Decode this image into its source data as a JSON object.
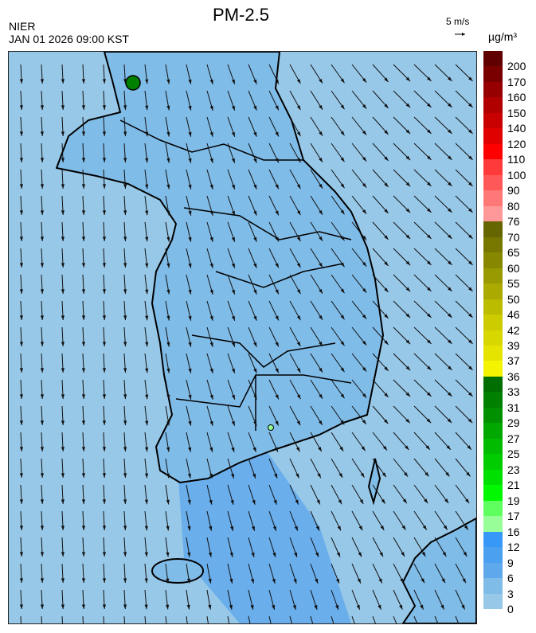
{
  "header": {
    "title": "PM-2.5",
    "source": "NIER",
    "datetime": "JAN 01 2026 09:00 KST"
  },
  "wind_reference": {
    "label": "5 m/s"
  },
  "legend": {
    "unit": "µg/m³",
    "labels": [
      "200",
      "170",
      "160",
      "150",
      "140",
      "120",
      "110",
      "100",
      "90",
      "80",
      "76",
      "70",
      "65",
      "60",
      "55",
      "50",
      "46",
      "42",
      "39",
      "37",
      "36",
      "33",
      "31",
      "29",
      "27",
      "25",
      "23",
      "21",
      "19",
      "17",
      "16",
      "12",
      "9",
      "6",
      "3",
      "0"
    ],
    "colors": [
      "#600000",
      "#7a0000",
      "#960000",
      "#b00000",
      "#c80000",
      "#e00000",
      "#ff0000",
      "#ff3a3a",
      "#ff5858",
      "#ff7878",
      "#ff9898",
      "#666600",
      "#777700",
      "#888800",
      "#999900",
      "#aaaa00",
      "#bbbb00",
      "#cccc00",
      "#d8d800",
      "#e4e400",
      "#f4f400",
      "#006e00",
      "#008000",
      "#009000",
      "#00a800",
      "#00bb00",
      "#00cc00",
      "#00e000",
      "#00f800",
      "#60ff60",
      "#98ff98",
      "#3898f8",
      "#4ca0f0",
      "#60a8ec",
      "#80bce8",
      "#98c8e8"
    ]
  },
  "colors": {
    "sea": "#98c8e8",
    "land": "#80bce8",
    "band": "#6aaeec",
    "hotspot_green": "#008000",
    "hotspot_light": "#98ff98"
  }
}
